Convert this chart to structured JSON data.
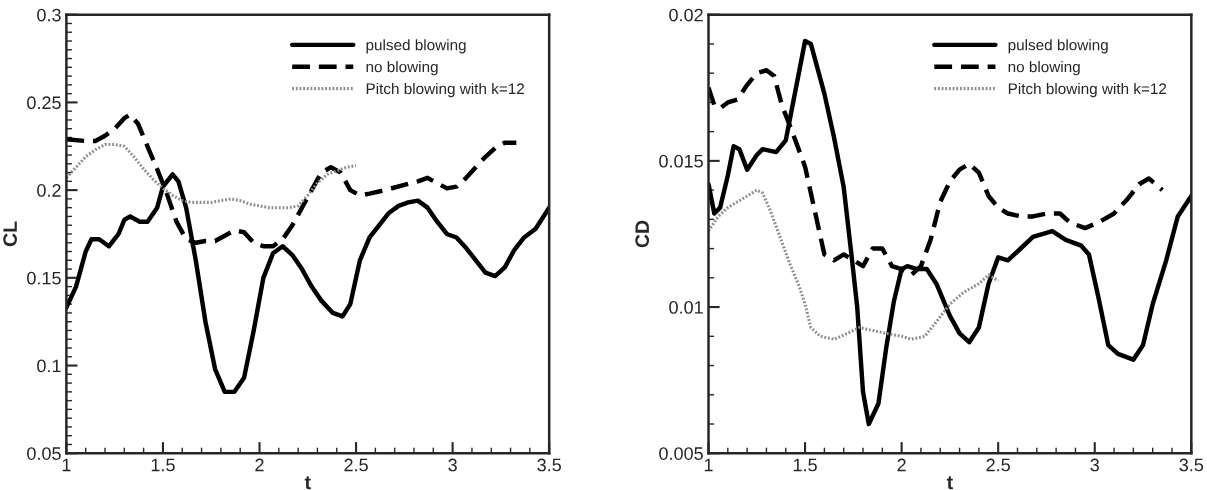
{
  "chart_data": [
    {
      "type": "line",
      "xlabel": "t",
      "ylabel": "CL",
      "xlim": [
        1,
        3.5
      ],
      "xticks": [
        1,
        1.5,
        2,
        2.5,
        3,
        3.5
      ],
      "ylim": [
        0.05,
        0.3
      ],
      "yticks": [
        0.05,
        0.1,
        0.15,
        0.2,
        0.25,
        0.3
      ],
      "grid": false,
      "legend": "top right",
      "series": [
        {
          "name": "pulsed blowing",
          "color": "#000000",
          "line_style": "solid",
          "x": [
            1.0,
            1.05,
            1.1,
            1.13,
            1.17,
            1.22,
            1.27,
            1.3,
            1.33,
            1.38,
            1.42,
            1.47,
            1.5,
            1.55,
            1.58,
            1.62,
            1.67,
            1.72,
            1.77,
            1.82,
            1.87,
            1.92,
            1.97,
            2.02,
            2.07,
            2.12,
            2.17,
            2.22,
            2.27,
            2.32,
            2.38,
            2.43,
            2.47,
            2.52,
            2.57,
            2.62,
            2.67,
            2.72,
            2.77,
            2.82,
            2.87,
            2.92,
            2.97,
            3.02,
            3.07,
            3.12,
            3.17,
            3.22,
            3.27,
            3.32,
            3.37,
            3.43,
            3.5
          ],
          "values": [
            0.133,
            0.145,
            0.165,
            0.172,
            0.172,
            0.168,
            0.175,
            0.183,
            0.185,
            0.182,
            0.182,
            0.19,
            0.202,
            0.209,
            0.205,
            0.19,
            0.16,
            0.125,
            0.098,
            0.085,
            0.085,
            0.093,
            0.12,
            0.15,
            0.164,
            0.168,
            0.163,
            0.155,
            0.145,
            0.137,
            0.13,
            0.128,
            0.135,
            0.16,
            0.173,
            0.18,
            0.187,
            0.191,
            0.193,
            0.194,
            0.19,
            0.182,
            0.175,
            0.173,
            0.167,
            0.16,
            0.153,
            0.151,
            0.156,
            0.166,
            0.173,
            0.178,
            0.19
          ]
        },
        {
          "name": "no blowing",
          "color": "#000000",
          "line_style": "dashed",
          "x": [
            1.0,
            1.1,
            1.15,
            1.2,
            1.25,
            1.3,
            1.33,
            1.37,
            1.42,
            1.47,
            1.52,
            1.57,
            1.62,
            1.67,
            1.72,
            1.77,
            1.82,
            1.87,
            1.92,
            1.97,
            2.02,
            2.07,
            2.12,
            2.17,
            2.22,
            2.27,
            2.32,
            2.37,
            2.42,
            2.47,
            2.52,
            2.57,
            2.65,
            2.75,
            2.82,
            2.87,
            2.92,
            2.97,
            3.02,
            3.07,
            3.12,
            3.17,
            3.22,
            3.27,
            3.33
          ],
          "values": [
            0.229,
            0.228,
            0.228,
            0.231,
            0.235,
            0.241,
            0.243,
            0.238,
            0.225,
            0.212,
            0.198,
            0.182,
            0.172,
            0.17,
            0.171,
            0.171,
            0.174,
            0.177,
            0.176,
            0.17,
            0.168,
            0.168,
            0.172,
            0.18,
            0.19,
            0.2,
            0.21,
            0.213,
            0.21,
            0.2,
            0.197,
            0.198,
            0.2,
            0.203,
            0.205,
            0.207,
            0.204,
            0.201,
            0.202,
            0.207,
            0.213,
            0.219,
            0.224,
            0.227,
            0.227
          ]
        },
        {
          "name": "Pitch blowing with k=12",
          "color": "#8c8c8c",
          "line_style": "dotted",
          "x": [
            1.0,
            1.05,
            1.1,
            1.15,
            1.2,
            1.25,
            1.3,
            1.35,
            1.4,
            1.45,
            1.5,
            1.55,
            1.6,
            1.65,
            1.7,
            1.75,
            1.8,
            1.85,
            1.9,
            1.95,
            2.0,
            2.05,
            2.1,
            2.15,
            2.2,
            2.25,
            2.3,
            2.35,
            2.4,
            2.45,
            2.5
          ],
          "values": [
            0.207,
            0.213,
            0.219,
            0.223,
            0.226,
            0.226,
            0.225,
            0.219,
            0.212,
            0.206,
            0.201,
            0.197,
            0.194,
            0.193,
            0.193,
            0.193,
            0.194,
            0.195,
            0.194,
            0.192,
            0.191,
            0.19,
            0.19,
            0.19,
            0.191,
            0.197,
            0.204,
            0.209,
            0.211,
            0.213,
            0.214
          ]
        }
      ]
    },
    {
      "type": "line",
      "xlabel": "t",
      "ylabel": "CD",
      "xlim": [
        1,
        3.5
      ],
      "xticks": [
        1,
        1.5,
        2,
        2.5,
        3,
        3.5
      ],
      "ylim": [
        0.005,
        0.02
      ],
      "yticks": [
        0.005,
        0.01,
        0.015,
        0.02
      ],
      "grid": false,
      "legend": "top right",
      "series": [
        {
          "name": "pulsed blowing",
          "color": "#000000",
          "line_style": "solid",
          "x": [
            1.0,
            1.03,
            1.06,
            1.1,
            1.13,
            1.16,
            1.2,
            1.25,
            1.28,
            1.35,
            1.4,
            1.45,
            1.5,
            1.53,
            1.6,
            1.65,
            1.7,
            1.74,
            1.77,
            1.8,
            1.83,
            1.88,
            1.92,
            1.96,
            2.0,
            2.03,
            2.08,
            2.13,
            2.18,
            2.25,
            2.3,
            2.35,
            2.4,
            2.45,
            2.5,
            2.55,
            2.6,
            2.68,
            2.78,
            2.85,
            2.93,
            2.97,
            3.02,
            3.07,
            3.12,
            3.2,
            3.25,
            3.3,
            3.37,
            3.43,
            3.5
          ],
          "values": [
            0.0142,
            0.0132,
            0.0134,
            0.0145,
            0.0155,
            0.0154,
            0.0147,
            0.0152,
            0.0154,
            0.0153,
            0.0157,
            0.0174,
            0.0191,
            0.019,
            0.0173,
            0.0158,
            0.0141,
            0.0118,
            0.01,
            0.0071,
            0.006,
            0.0067,
            0.0086,
            0.0102,
            0.0113,
            0.0114,
            0.0113,
            0.0113,
            0.0108,
            0.0097,
            0.0091,
            0.0088,
            0.0093,
            0.0108,
            0.0117,
            0.0116,
            0.0119,
            0.0124,
            0.0126,
            0.0123,
            0.0121,
            0.0118,
            0.0103,
            0.0087,
            0.0084,
            0.0082,
            0.0087,
            0.0101,
            0.0116,
            0.0131,
            0.0138
          ]
        },
        {
          "name": "no blowing",
          "color": "#000000",
          "line_style": "dashed",
          "x": [
            1.0,
            1.03,
            1.06,
            1.1,
            1.15,
            1.2,
            1.25,
            1.3,
            1.34,
            1.38,
            1.41,
            1.45,
            1.5,
            1.55,
            1.6,
            1.65,
            1.7,
            1.75,
            1.8,
            1.85,
            1.9,
            1.95,
            2.0,
            2.05,
            2.1,
            2.15,
            2.2,
            2.25,
            2.3,
            2.35,
            2.4,
            2.45,
            2.5,
            2.55,
            2.62,
            2.68,
            2.75,
            2.82,
            2.87,
            2.95,
            3.02,
            3.1,
            3.17,
            3.23,
            3.28,
            3.35
          ],
          "values": [
            0.0175,
            0.0169,
            0.0168,
            0.017,
            0.0171,
            0.0176,
            0.018,
            0.0181,
            0.0179,
            0.0169,
            0.0164,
            0.0157,
            0.0148,
            0.0133,
            0.0118,
            0.0116,
            0.0118,
            0.0116,
            0.0114,
            0.012,
            0.012,
            0.0114,
            0.0113,
            0.0111,
            0.0114,
            0.0123,
            0.0136,
            0.0143,
            0.0147,
            0.0149,
            0.0146,
            0.0138,
            0.0134,
            0.0132,
            0.0131,
            0.0131,
            0.0132,
            0.0132,
            0.0129,
            0.0127,
            0.0129,
            0.0132,
            0.0137,
            0.0142,
            0.0144,
            0.014
          ]
        },
        {
          "name": "Pitch blowing with k=12",
          "color": "#8c8c8c",
          "line_style": "dotted",
          "x": [
            1.0,
            1.05,
            1.1,
            1.15,
            1.2,
            1.25,
            1.28,
            1.32,
            1.37,
            1.42,
            1.47,
            1.5,
            1.53,
            1.58,
            1.65,
            1.72,
            1.78,
            1.85,
            1.92,
            2.0,
            2.05,
            2.12,
            2.18,
            2.25,
            2.32,
            2.4,
            2.45,
            2.5
          ],
          "values": [
            0.0126,
            0.0131,
            0.0134,
            0.0136,
            0.0138,
            0.014,
            0.0139,
            0.0133,
            0.0124,
            0.0115,
            0.0107,
            0.0101,
            0.0093,
            0.009,
            0.0089,
            0.0091,
            0.0093,
            0.0092,
            0.0091,
            0.009,
            0.0089,
            0.009,
            0.0095,
            0.0101,
            0.0105,
            0.0108,
            0.0111,
            0.0109
          ]
        }
      ]
    }
  ]
}
